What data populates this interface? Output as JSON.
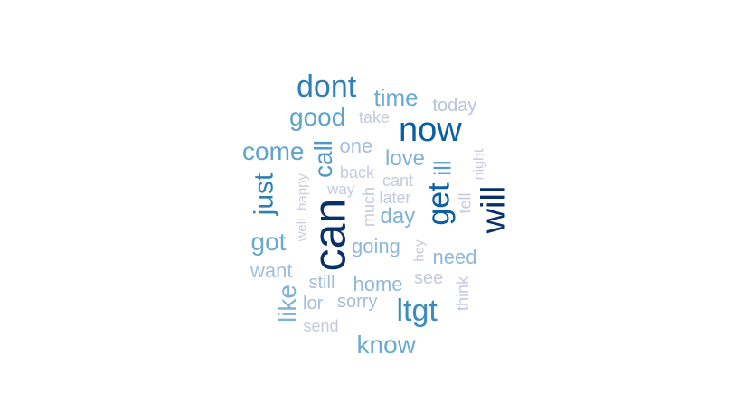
{
  "word_cloud": {
    "words": [
      {
        "text": "can",
        "color": "#08306b"
      },
      {
        "text": "will",
        "color": "#08306b"
      },
      {
        "text": "now",
        "color": "#0b5fa5"
      },
      {
        "text": "get",
        "color": "#0b5fa5"
      },
      {
        "text": "dont",
        "color": "#2e7fb6"
      },
      {
        "text": "just",
        "color": "#2e7fb6"
      },
      {
        "text": "ltgt",
        "color": "#3a8cc0"
      },
      {
        "text": "call",
        "color": "#4f9ac7"
      },
      {
        "text": "ill",
        "color": "#4f9ac7"
      },
      {
        "text": "good",
        "color": "#5ea3cc"
      },
      {
        "text": "come",
        "color": "#5ea3cc"
      },
      {
        "text": "time",
        "color": "#6aaad0"
      },
      {
        "text": "got",
        "color": "#6aaad0"
      },
      {
        "text": "know",
        "color": "#6aaad0"
      },
      {
        "text": "like",
        "color": "#7fb2d6"
      },
      {
        "text": "love",
        "color": "#7fb2d6"
      },
      {
        "text": "day",
        "color": "#7fb2d6"
      },
      {
        "text": "going",
        "color": "#8fb8d9"
      },
      {
        "text": "need",
        "color": "#8fb8d9"
      },
      {
        "text": "home",
        "color": "#8fb8d9"
      },
      {
        "text": "want",
        "color": "#9fc0dd"
      },
      {
        "text": "one",
        "color": "#a3bedb"
      },
      {
        "text": "still",
        "color": "#a3bedb"
      },
      {
        "text": "sorry",
        "color": "#a3bedb"
      },
      {
        "text": "lor",
        "color": "#a3bedb"
      },
      {
        "text": "today",
        "color": "#b7c3dc"
      },
      {
        "text": "take",
        "color": "#c4cade"
      },
      {
        "text": "back",
        "color": "#c4cade"
      },
      {
        "text": "cant",
        "color": "#c4cade"
      },
      {
        "text": "later",
        "color": "#c4cade"
      },
      {
        "text": "way",
        "color": "#c4cade"
      },
      {
        "text": "much",
        "color": "#c4cade"
      },
      {
        "text": "see",
        "color": "#c4cade"
      },
      {
        "text": "send",
        "color": "#c4cade"
      },
      {
        "text": "hey",
        "color": "#c4cade"
      },
      {
        "text": "tell",
        "color": "#c4cade"
      },
      {
        "text": "night",
        "color": "#c4cade"
      },
      {
        "text": "think",
        "color": "#c4cade"
      },
      {
        "text": "happy",
        "color": "#c9cde0"
      },
      {
        "text": "well",
        "color": "#c9cde0"
      }
    ]
  }
}
